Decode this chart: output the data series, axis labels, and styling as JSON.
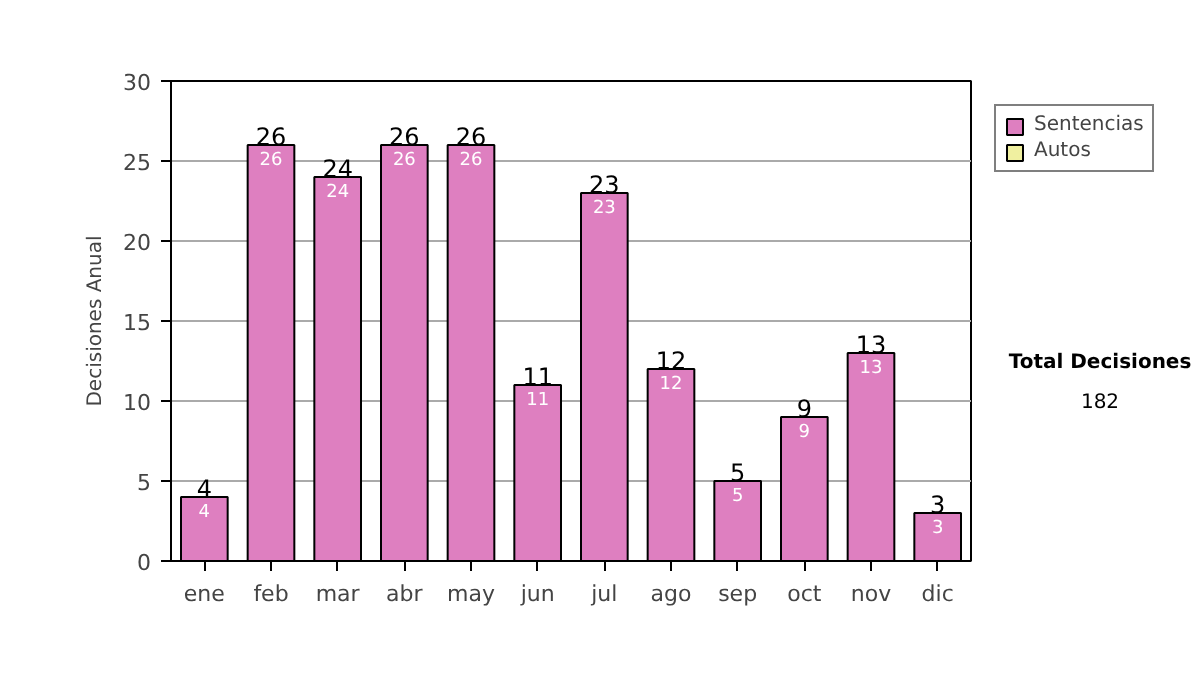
{
  "chart_data": {
    "type": "bar",
    "stacked": true,
    "ylabel": "Decisiones Anual",
    "categories": [
      "ene",
      "feb",
      "mar",
      "abr",
      "may",
      "jun",
      "jul",
      "ago",
      "sep",
      "oct",
      "nov",
      "dic"
    ],
    "series": [
      {
        "name": "Sentencias",
        "color": "#de7fc0",
        "values": [
          4,
          26,
          24,
          26,
          26,
          11,
          23,
          12,
          5,
          9,
          13,
          3
        ],
        "value_labels": [
          "4",
          "26",
          "24",
          "26",
          "26",
          "11",
          "23",
          "12",
          "5",
          "9",
          "13",
          "3"
        ]
      },
      {
        "name": "Autos",
        "color": "#f0f0a0",
        "values": [
          null,
          null,
          null,
          null,
          null,
          null,
          null,
          null,
          null,
          null,
          null,
          null
        ]
      }
    ],
    "totals": [
      "4",
      "26",
      "24",
      "26",
      "26",
      "11",
      "23",
      "12",
      "5",
      "9",
      "13",
      "3"
    ],
    "ylim": [
      0,
      30
    ],
    "yticks": [
      0,
      5,
      10,
      15,
      20,
      25,
      30
    ],
    "grid": "y",
    "legend": "right",
    "annotations": [
      "Total Decisiones",
      "182"
    ]
  }
}
